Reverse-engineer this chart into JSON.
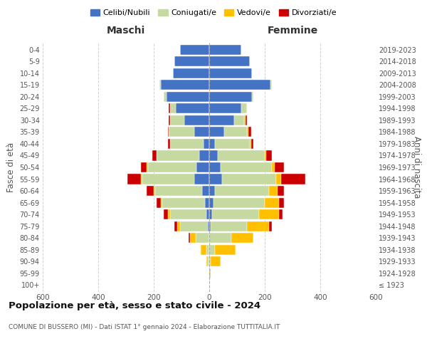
{
  "age_groups": [
    "100+",
    "95-99",
    "90-94",
    "85-89",
    "80-84",
    "75-79",
    "70-74",
    "65-69",
    "60-64",
    "55-59",
    "50-54",
    "45-49",
    "40-44",
    "35-39",
    "30-34",
    "25-29",
    "20-24",
    "15-19",
    "10-14",
    "5-9",
    "0-4"
  ],
  "birth_years": [
    "≤ 1923",
    "1924-1928",
    "1929-1933",
    "1934-1938",
    "1939-1943",
    "1944-1948",
    "1949-1953",
    "1954-1958",
    "1959-1963",
    "1964-1968",
    "1969-1973",
    "1974-1978",
    "1979-1983",
    "1984-1988",
    "1989-1993",
    "1994-1998",
    "1999-2003",
    "2004-2008",
    "2009-2013",
    "2014-2018",
    "2019-2023"
  ],
  "male": {
    "celibi": [
      0,
      0,
      0,
      0,
      0,
      5,
      10,
      15,
      25,
      55,
      45,
      35,
      20,
      55,
      90,
      120,
      155,
      175,
      130,
      125,
      105
    ],
    "coniugati": [
      0,
      0,
      5,
      10,
      50,
      100,
      130,
      155,
      170,
      185,
      175,
      155,
      120,
      90,
      50,
      20,
      10,
      5,
      0,
      0,
      0
    ],
    "vedovi": [
      0,
      0,
      5,
      20,
      20,
      10,
      10,
      5,
      5,
      5,
      5,
      0,
      0,
      0,
      0,
      0,
      0,
      0,
      0,
      0,
      0
    ],
    "divorziati": [
      0,
      0,
      0,
      0,
      5,
      10,
      15,
      15,
      25,
      50,
      20,
      15,
      10,
      5,
      5,
      5,
      0,
      0,
      0,
      0,
      0
    ]
  },
  "female": {
    "nubili": [
      0,
      0,
      0,
      0,
      0,
      5,
      10,
      15,
      20,
      45,
      40,
      30,
      20,
      55,
      90,
      115,
      155,
      220,
      155,
      145,
      115
    ],
    "coniugate": [
      0,
      0,
      5,
      20,
      80,
      130,
      170,
      185,
      195,
      195,
      185,
      170,
      125,
      80,
      35,
      20,
      5,
      5,
      0,
      0,
      0
    ],
    "vedove": [
      0,
      5,
      35,
      75,
      80,
      80,
      70,
      50,
      30,
      20,
      10,
      5,
      5,
      5,
      5,
      0,
      0,
      0,
      0,
      0,
      0
    ],
    "divorziate": [
      0,
      0,
      0,
      0,
      0,
      10,
      15,
      20,
      25,
      85,
      35,
      20,
      10,
      10,
      5,
      0,
      0,
      0,
      0,
      0,
      0
    ]
  },
  "colors": {
    "celibi": "#4472c4",
    "coniugati": "#c5d9a0",
    "vedovi": "#ffc000",
    "divorziati": "#cc0000"
  },
  "title": "Popolazione per età, sesso e stato civile - 2024",
  "subtitle": "COMUNE DI BUSSERO (MI) - Dati ISTAT 1° gennaio 2024 - Elaborazione TUTTITALIA.IT",
  "xlabel_left": "Maschi",
  "xlabel_right": "Femmine",
  "ylabel_left": "Fasce di età",
  "ylabel_right": "Anni di nascita",
  "xlim": 600,
  "bg_color": "#ffffff",
  "grid_color": "#cccccc",
  "legend_labels": [
    "Celibi/Nubili",
    "Coniugati/e",
    "Vedovi/e",
    "Divorziati/e"
  ]
}
